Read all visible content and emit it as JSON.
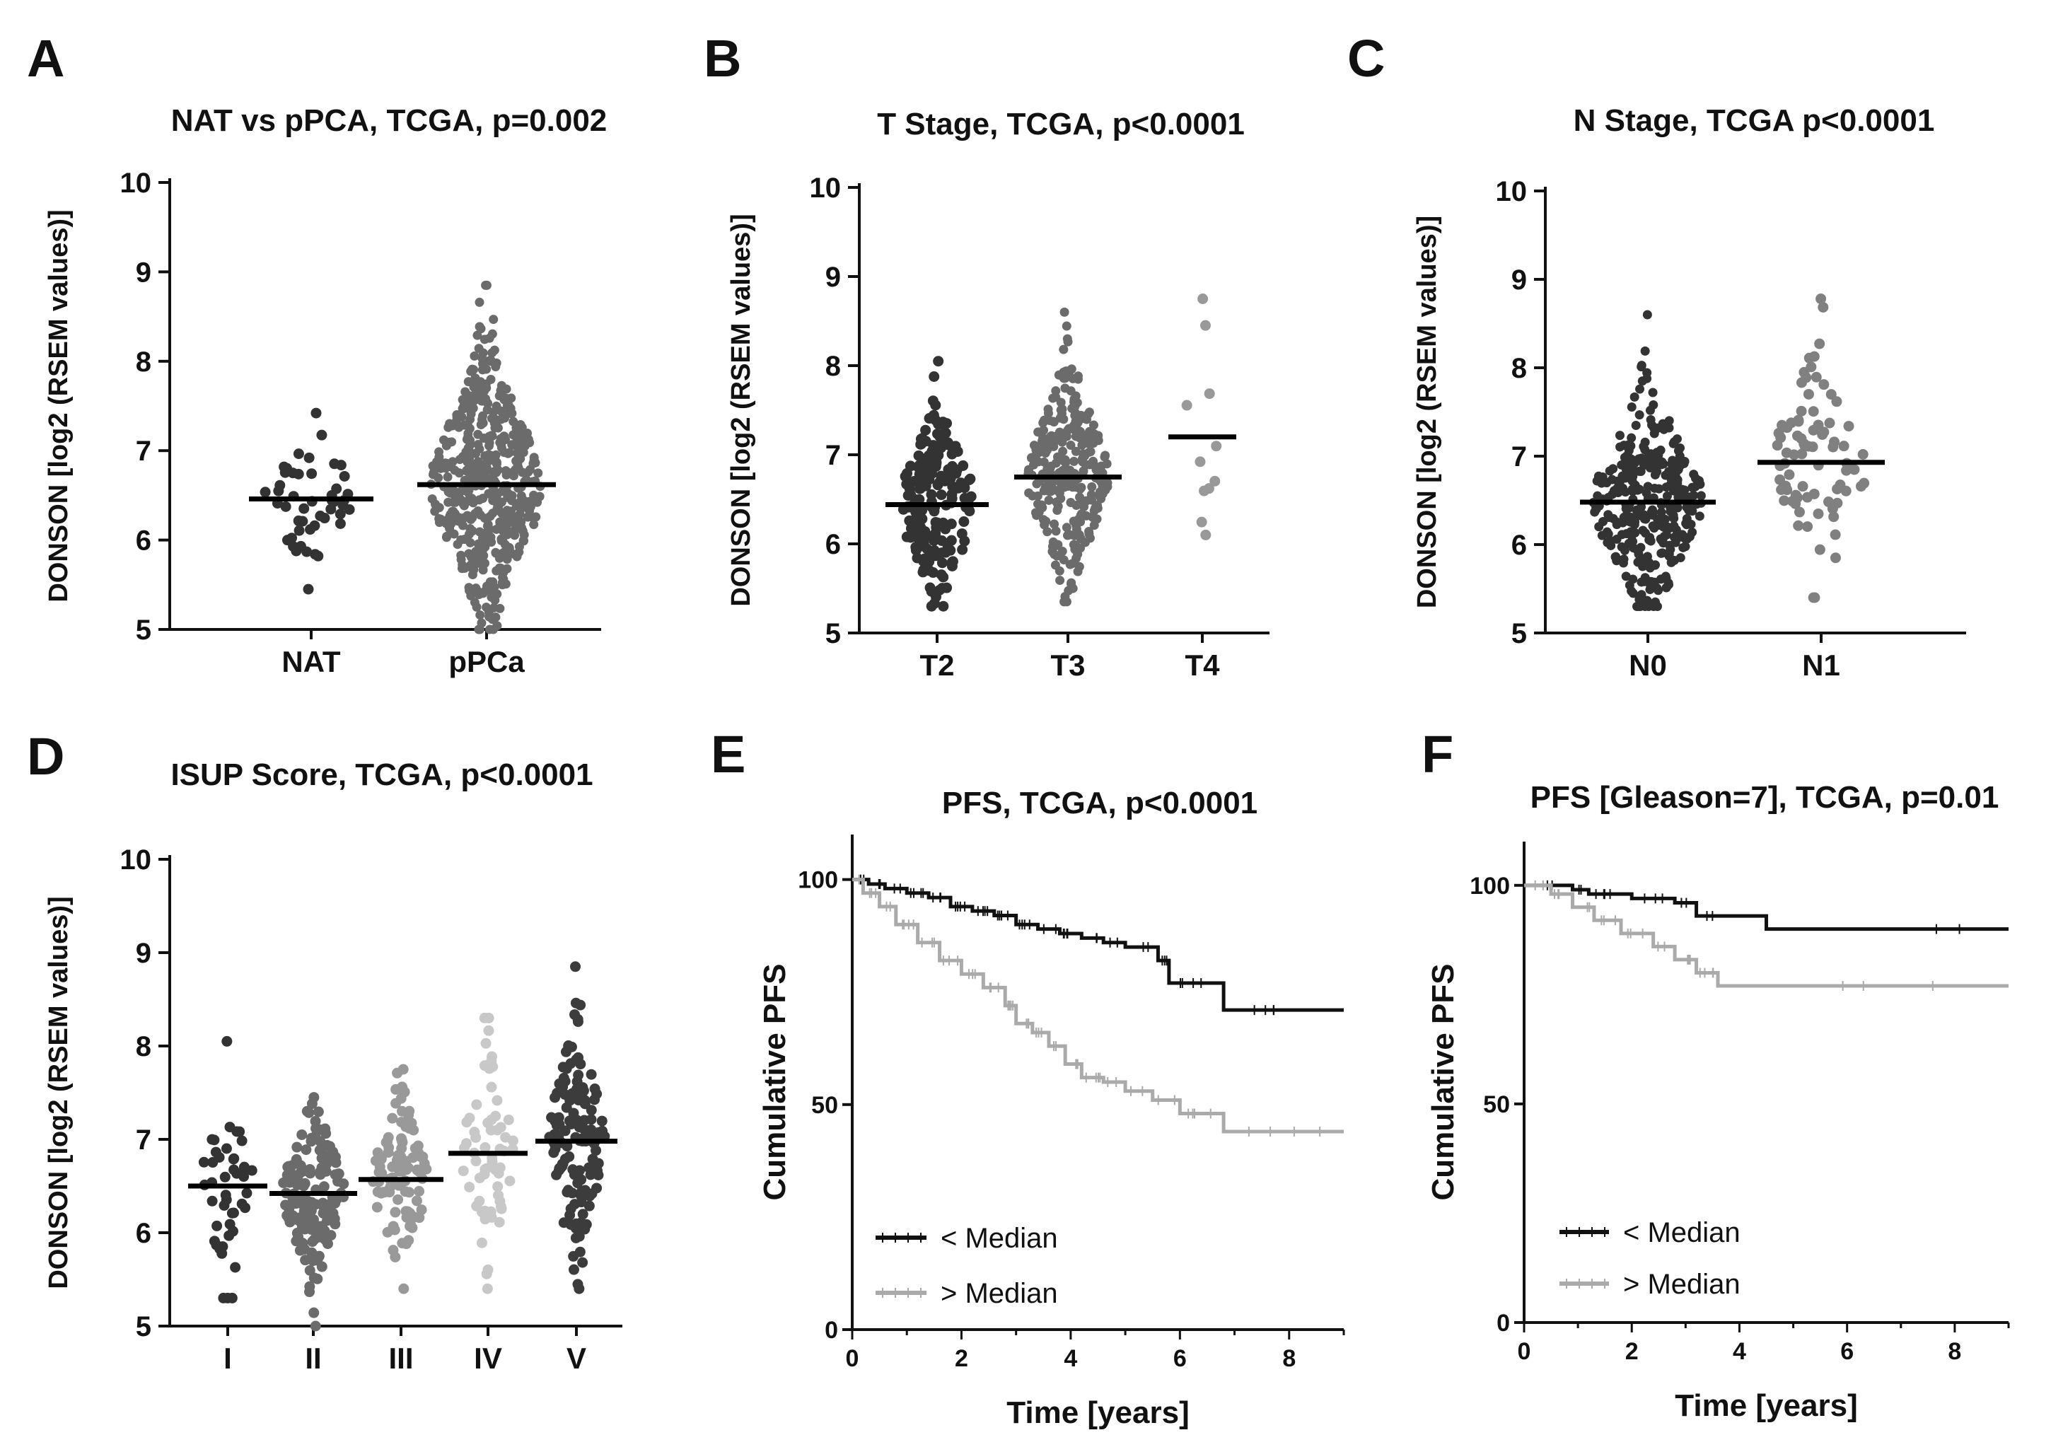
{
  "chart_data": [
    {
      "panel": "A",
      "type": "scatter",
      "title": "NAT vs pPCA, TCGA, p=0.002",
      "ylabel": "DONSON [log2 (RSEM values)]",
      "ylim": [
        5,
        10
      ],
      "yticks": [
        "5",
        "6",
        "7",
        "8",
        "9",
        "10"
      ],
      "categories": [
        "NAT",
        "pPCa"
      ],
      "groups": [
        {
          "name": "NAT",
          "median": 6.46,
          "min": 5.45,
          "max": 7.42,
          "n": 48,
          "color": "#333333"
        },
        {
          "name": "pPCa",
          "median": 6.62,
          "min": 5.0,
          "max": 8.85,
          "n": 500,
          "color": "#6b6b6b"
        }
      ]
    },
    {
      "panel": "B",
      "type": "scatter",
      "title": "T Stage, TCGA, p<0.0001",
      "ylabel": "DONSON [log2 (RSEM values)]",
      "ylim": [
        5,
        10
      ],
      "yticks": [
        "5",
        "6",
        "7",
        "8",
        "9",
        "10"
      ],
      "categories": [
        "T2",
        "T3",
        "T4"
      ],
      "groups": [
        {
          "name": "T2",
          "median": 6.44,
          "min": 5.3,
          "max": 8.05,
          "n": 190,
          "color": "#333333"
        },
        {
          "name": "T3",
          "median": 6.75,
          "min": 5.35,
          "max": 8.6,
          "n": 290,
          "color": "#6b6b6b"
        },
        {
          "name": "T4",
          "median": 7.2,
          "min": 6.1,
          "max": 8.75,
          "n": 11,
          "color": "#999999"
        }
      ]
    },
    {
      "panel": "C",
      "type": "scatter",
      "title": "N Stage, TCGA p<0.0001",
      "ylabel": "DONSON [log2 (RSEM values)]",
      "ylim": [
        5,
        10
      ],
      "yticks": [
        "5",
        "6",
        "7",
        "8",
        "9",
        "10"
      ],
      "categories": [
        "N0",
        "N1"
      ],
      "groups": [
        {
          "name": "N0",
          "median": 6.48,
          "min": 5.3,
          "max": 8.6,
          "n": 340,
          "color": "#333333"
        },
        {
          "name": "N1",
          "median": 6.93,
          "min": 5.4,
          "max": 8.78,
          "n": 80,
          "color": "#808080"
        }
      ]
    },
    {
      "panel": "D",
      "type": "scatter",
      "title": "ISUP Score, TCGA, p<0.0001",
      "ylabel": "DONSON [log2 (RSEM values)]",
      "ylim": [
        5,
        10
      ],
      "yticks": [
        "5",
        "6",
        "7",
        "8",
        "9",
        "10"
      ],
      "categories": [
        "I",
        "II",
        "III",
        "IV",
        "V"
      ],
      "groups": [
        {
          "name": "I",
          "median": 6.5,
          "min": 5.3,
          "max": 8.05,
          "n": 45,
          "color": "#333333"
        },
        {
          "name": "II",
          "median": 6.42,
          "min": 5.0,
          "max": 7.45,
          "n": 145,
          "color": "#6b6b6b"
        },
        {
          "name": "III",
          "median": 6.57,
          "min": 5.4,
          "max": 7.75,
          "n": 100,
          "color": "#999999"
        },
        {
          "name": "IV",
          "median": 6.85,
          "min": 5.4,
          "max": 8.3,
          "n": 65,
          "color": "#c8c8c8"
        },
        {
          "name": "V",
          "median": 6.98,
          "min": 5.4,
          "max": 8.85,
          "n": 140,
          "color": "#3c3c3c"
        }
      ]
    },
    {
      "panel": "E",
      "type": "line",
      "title": "PFS, TCGA, p<0.0001",
      "xlabel": "Time [years]",
      "ylabel": "Cumulative PFS",
      "xlim": [
        0,
        9
      ],
      "ylim": [
        0,
        110
      ],
      "xticks": [
        "0",
        "2",
        "4",
        "6",
        "8"
      ],
      "yticks": [
        "0",
        "50",
        "100"
      ],
      "series": [
        {
          "name": "< Median",
          "color": "#111111",
          "x": [
            0,
            0.3,
            0.6,
            1.0,
            1.4,
            1.8,
            2.2,
            2.6,
            3.0,
            3.4,
            3.8,
            4.2,
            4.6,
            5.0,
            5.6,
            5.8,
            6.8,
            9.0
          ],
          "y": [
            100,
            99,
            98,
            97,
            96,
            94,
            93,
            92,
            90,
            89,
            88,
            87,
            86,
            85,
            82,
            77,
            71,
            71
          ]
        },
        {
          "name": "> Median",
          "color": "#aaaaaa",
          "x": [
            0,
            0.2,
            0.5,
            0.8,
            1.2,
            1.6,
            2.0,
            2.4,
            2.8,
            3.0,
            3.3,
            3.6,
            3.9,
            4.2,
            4.6,
            5.0,
            5.5,
            6.0,
            6.8,
            9.0
          ],
          "y": [
            100,
            97,
            94,
            90,
            86,
            82,
            79,
            76,
            72,
            68,
            66,
            63,
            59,
            56,
            55,
            53,
            51,
            48,
            44,
            44
          ]
        }
      ],
      "legend": {
        "position": "bottom-left",
        "items": [
          "< Median",
          "> Median"
        ]
      }
    },
    {
      "panel": "F",
      "type": "line",
      "title": "PFS [Gleason=7], TCGA, p=0.01",
      "xlabel": "Time [years]",
      "ylabel": "Cumulative PFS",
      "xlim": [
        0,
        9
      ],
      "ylim": [
        0,
        110
      ],
      "xticks": [
        "0",
        "2",
        "4",
        "6",
        "8"
      ],
      "yticks": [
        "0",
        "50",
        "100"
      ],
      "series": [
        {
          "name": "< Median",
          "color": "#111111",
          "x": [
            0,
            0.9,
            1.2,
            2.0,
            2.8,
            3.2,
            4.5,
            9.0
          ],
          "y": [
            100,
            99,
            98,
            97,
            96,
            93,
            90,
            90
          ]
        },
        {
          "name": "> Median",
          "color": "#aaaaaa",
          "x": [
            0,
            0.5,
            0.9,
            1.3,
            1.8,
            2.4,
            2.8,
            3.2,
            3.6,
            9.0
          ],
          "y": [
            100,
            98,
            95,
            92,
            89,
            86,
            83,
            80,
            77,
            77
          ]
        }
      ],
      "legend": {
        "position": "bottom-left",
        "items": [
          "< Median",
          "> Median"
        ]
      }
    }
  ]
}
